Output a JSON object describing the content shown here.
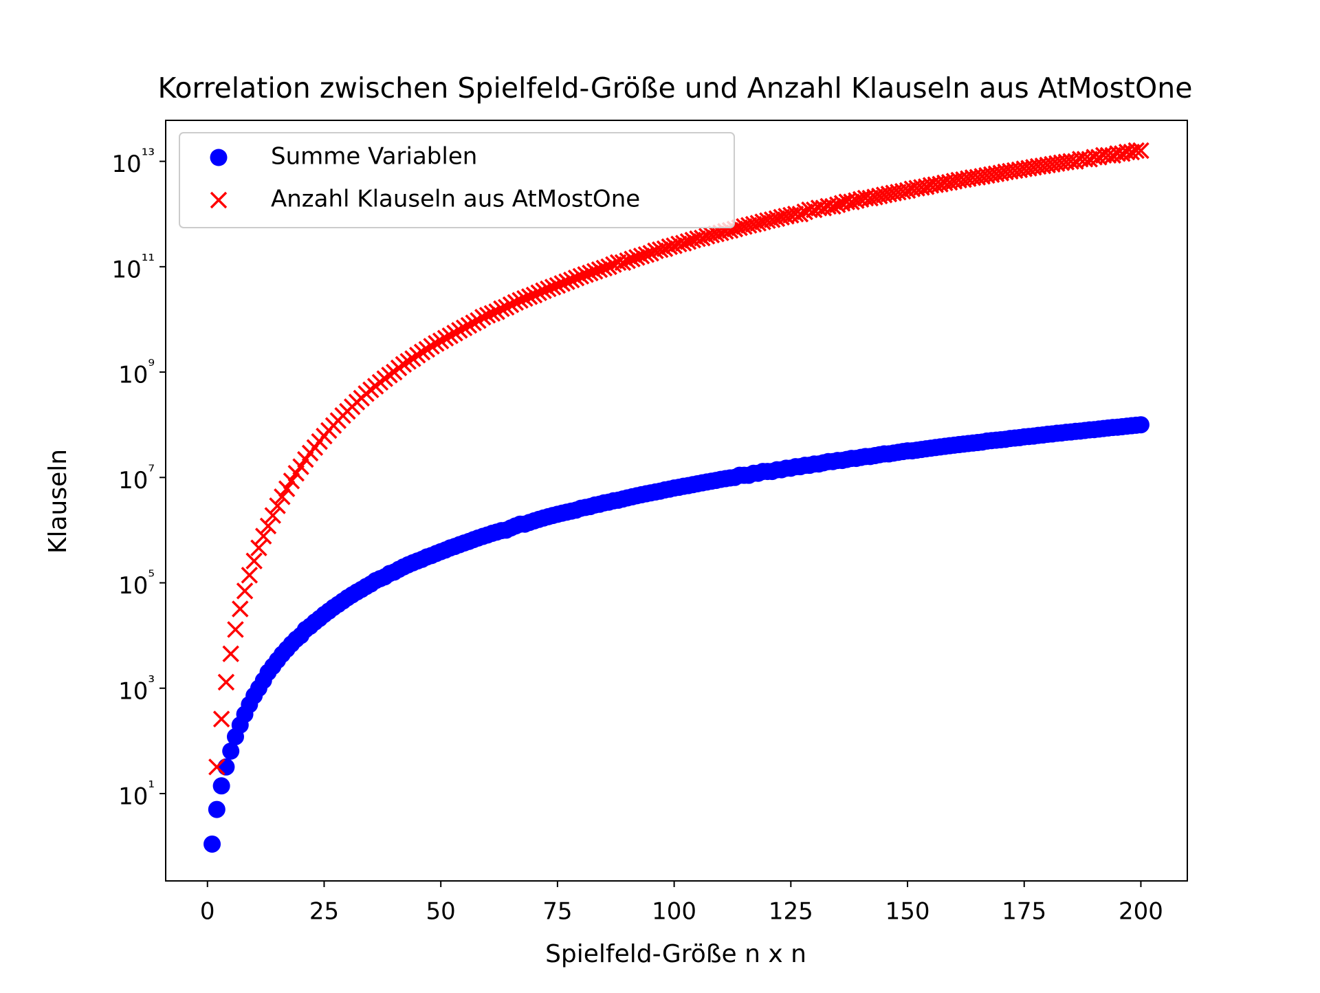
{
  "chart_data": {
    "type": "scatter",
    "title": "Korrelation zwischen Spielfeld-Größe und Anzahl Klauseln aus AtMostOne",
    "x_label": "Spielfeld-Größe n x n",
    "y_label": "Klauseln",
    "y_scale": "log",
    "legend": "upper left",
    "xlim": [
      -8.95,
      209.95
    ],
    "ylim": [
      0.22,
      60000000000000.0
    ],
    "xticks": [
      0,
      25,
      50,
      75,
      100,
      125,
      150,
      175,
      200
    ],
    "yticks": [
      {
        "value": 10,
        "label": "10¹"
      },
      {
        "value": 1000,
        "label": "10³"
      },
      {
        "value": 100000,
        "label": "10⁵"
      },
      {
        "value": 10000000,
        "label": "10⁷"
      },
      {
        "value": 1000000000,
        "label": "10⁹"
      },
      {
        "value": 100000000000,
        "label": "10¹¹"
      },
      {
        "value": 10000000000000,
        "label": "10¹³"
      }
    ],
    "x": [
      1,
      2,
      3,
      4,
      5,
      6,
      7,
      8,
      9,
      10,
      11,
      12,
      13,
      14,
      15,
      16,
      17,
      18,
      19,
      20,
      21,
      22,
      23,
      24,
      25,
      26,
      27,
      28,
      29,
      30,
      31,
      32,
      33,
      34,
      35,
      36,
      37,
      38,
      39,
      40,
      41,
      42,
      43,
      44,
      45,
      46,
      47,
      48,
      49,
      50,
      51,
      52,
      53,
      54,
      55,
      56,
      57,
      58,
      59,
      60,
      61,
      62,
      63,
      64,
      65,
      66,
      67,
      68,
      69,
      70,
      71,
      72,
      73,
      74,
      75,
      76,
      77,
      78,
      79,
      80,
      81,
      82,
      83,
      84,
      85,
      86,
      87,
      88,
      89,
      90,
      91,
      92,
      93,
      94,
      95,
      96,
      97,
      98,
      99,
      100,
      101,
      102,
      103,
      104,
      105,
      106,
      107,
      108,
      109,
      110,
      111,
      112,
      113,
      114,
      115,
      116,
      117,
      118,
      119,
      120,
      121,
      122,
      123,
      124,
      125,
      126,
      127,
      128,
      129,
      130,
      131,
      132,
      133,
      134,
      135,
      136,
      137,
      138,
      139,
      140,
      141,
      142,
      143,
      144,
      145,
      146,
      147,
      148,
      149,
      150,
      151,
      152,
      153,
      154,
      155,
      156,
      157,
      158,
      159,
      160,
      161,
      162,
      163,
      164,
      165,
      166,
      167,
      168,
      169,
      170,
      171,
      172,
      173,
      174,
      175,
      176,
      177,
      178,
      179,
      180,
      181,
      182,
      183,
      184,
      185,
      186,
      187,
      188,
      189,
      190,
      191,
      192,
      193,
      194,
      195,
      196,
      197,
      198,
      199,
      200
    ],
    "series": [
      {
        "name": "Summe Variablen",
        "color": "#0000ff",
        "marker": "o",
        "values": [
          1.1,
          5,
          14,
          32,
          64,
          120,
          200,
          320,
          490,
          720,
          1000,
          1400,
          2000,
          2600,
          3400,
          4400,
          5500,
          6900,
          8500,
          10000.0,
          13000.0,
          15000.0,
          18000.0,
          21000.0,
          25000.0,
          29000.0,
          34000.0,
          39000.0,
          45000.0,
          52000.0,
          59000.0,
          67000.0,
          75000.0,
          85000.0,
          95000.0,
          110000.0,
          120000.0,
          130000.0,
          150000.0,
          160000.0,
          180000.0,
          200000.0,
          220000.0,
          240000.0,
          260000.0,
          280000.0,
          310000.0,
          330000.0,
          360000.0,
          390000.0,
          420000.0,
          460000.0,
          490000.0,
          530000.0,
          570000.0,
          610000.0,
          660000.0,
          710000.0,
          760000.0,
          810000.0,
          870000.0,
          920000.0,
          980000.0,
          1000000.0,
          1100000.0,
          1200000.0,
          1300000.0,
          1300000.0,
          1400000.0,
          1500000.0,
          1600000.0,
          1700000.0,
          1800000.0,
          1900000.0,
          2000000.0,
          2100000.0,
          2200000.0,
          2300000.0,
          2400000.0,
          2600000.0,
          2700000.0,
          2800000.0,
          3000000.0,
          3100000.0,
          3300000.0,
          3400000.0,
          3600000.0,
          3700000.0,
          3900000.0,
          4100000.0,
          4300000.0,
          4500000.0,
          4700000.0,
          4900000.0,
          5100000.0,
          5300000.0,
          5500000.0,
          5800000.0,
          6000000.0,
          6300000.0,
          6500000.0,
          6800000.0,
          7000000.0,
          7300000.0,
          7600000.0,
          7900000.0,
          8200000.0,
          8500000.0,
          8800000.0,
          9200000.0,
          9500000.0,
          9800000.0,
          10000000.0,
          11000000.0,
          11000000.0,
          11000000.0,
          12000000.0,
          12000000.0,
          13000000.0,
          13000000.0,
          13000000.0,
          14000000.0,
          14000000.0,
          15000000.0,
          15000000.0,
          16000000.0,
          16000000.0,
          17000000.0,
          17000000.0,
          18000000.0,
          18000000.0,
          19000000.0,
          20000000.0,
          20000000.0,
          21000000.0,
          21000000.0,
          22000000.0,
          23000000.0,
          23000000.0,
          24000000.0,
          25000000.0,
          25000000.0,
          26000000.0,
          27000000.0,
          28000000.0,
          28000000.0,
          29000000.0,
          30000000.0,
          31000000.0,
          32000000.0,
          32000000.0,
          33000000.0,
          34000000.0,
          35000000.0,
          36000000.0,
          37000000.0,
          38000000.0,
          39000000.0,
          40000000.0,
          41000000.0,
          42000000.0,
          43000000.0,
          44000000.0,
          45000000.0,
          46000000.0,
          47000000.0,
          49000000.0,
          50000000.0,
          51000000.0,
          52000000.0,
          53000000.0,
          55000000.0,
          56000000.0,
          57000000.0,
          59000000.0,
          60000000.0,
          61000000.0,
          63000000.0,
          64000000.0,
          66000000.0,
          67000000.0,
          69000000.0,
          70000000.0,
          72000000.0,
          73000000.0,
          75000000.0,
          76000000.0,
          78000000.0,
          80000000.0,
          81000000.0,
          83000000.0,
          85000000.0,
          87000000.0,
          89000000.0,
          90000000.0,
          92000000.0,
          94000000.0,
          96000000.0,
          98000000.0,
          100000000.0
        ]
      },
      {
        "name": "Anzahl Klauseln aus AtMostOne",
        "color": "#ff0000",
        "marker": "x",
        "values": [
          null,
          32,
          260,
          1300,
          4500,
          13000.0,
          32000.0,
          70000.0,
          140000.0,
          260000.0,
          460000.0,
          770000.0,
          1200000.0,
          1900000.0,
          2900000.0,
          4300000.0,
          6100000.0,
          8600000.0,
          12000000.0,
          16000000.0,
          22000000.0,
          29000000.0,
          37000000.0,
          48000000.0,
          61000000.0,
          78000000.0,
          97000000.0,
          120000000.0,
          150000000.0,
          180000000.0,
          220000000.0,
          270000000.0,
          320000000.0,
          390000000.0,
          460000000.0,
          540000000.0,
          640000000.0,
          750000000.0,
          880000000.0,
          1000000000.0,
          1200000000.0,
          1400000000.0,
          1600000000.0,
          1800000000.0,
          2100000000.0,
          2400000000.0,
          2700000000.0,
          3100000000.0,
          3500000000.0,
          3900000000.0,
          4400000000.0,
          4900000000.0,
          5500000000.0,
          6200000000.0,
          6900000000.0,
          7700000000.0,
          8600000000.0,
          9500000000.0,
          11000000000.0,
          12000000000.0,
          13000000000.0,
          14000000000.0,
          16000000000.0,
          17000000000.0,
          19000000000.0,
          21000000000.0,
          23000000000.0,
          25000000000.0,
          27000000000.0,
          29000000000.0,
          32000000000.0,
          35000000000.0,
          38000000000.0,
          41000000000.0,
          44000000000.0,
          48000000000.0,
          52000000000.0,
          56000000000.0,
          61000000000.0,
          66000000000.0,
          71000000000.0,
          76000000000.0,
          82000000000.0,
          88000000000.0,
          94000000000.0,
          100000000000.0,
          110000000000.0,
          120000000000.0,
          120000000000.0,
          130000000000.0,
          140000000000.0,
          150000000000.0,
          160000000000.0,
          170000000000.0,
          180000000000.0,
          200000000000.0,
          210000000000.0,
          220000000000.0,
          240000000000.0,
          250000000000.0,
          270000000000.0,
          280000000000.0,
          300000000000.0,
          320000000000.0,
          340000000000.0,
          350000000000.0,
          380000000000.0,
          400000000000.0,
          420000000000.0,
          440000000000.0,
          470000000000.0,
          490000000000.0,
          520000000000.0,
          550000000000.0,
          580000000000.0,
          610000000000.0,
          640000000000.0,
          670000000000.0,
          710000000000.0,
          750000000000.0,
          780000000000.0,
          820000000000.0,
          870000000000.0,
          910000000000.0,
          950000000000.0,
          1000000000000.0,
          1000000000000.0,
          1100000000000.0,
          1200000000000.0,
          1200000000000.0,
          1300000000000.0,
          1300000000000.0,
          1400000000000.0,
          1400000000000.0,
          1500000000000.0,
          1600000000000.0,
          1700000000000.0,
          1700000000000.0,
          1800000000000.0,
          1900000000000.0,
          2000000000000.0,
          2000000000000.0,
          2100000000000.0,
          2200000000000.0,
          2300000000000.0,
          2400000000000.0,
          2500000000000.0,
          2600000000000.0,
          2700000000000.0,
          2800000000000.0,
          3000000000000.0,
          3100000000000.0,
          3200000000000.0,
          3300000000000.0,
          3500000000000.0,
          3600000000000.0,
          3700000000000.0,
          3900000000000.0,
          4000000000000.0,
          4200000000000.0,
          4400000000000.0,
          4500000000000.0,
          4700000000000.0,
          4900000000000.0,
          5000000000000.0,
          5200000000000.0,
          5400000000000.0,
          5600000000000.0,
          5800000000000.0,
          6000000000000.0,
          6300000000000.0,
          6500000000000.0,
          6700000000000.0,
          6900000000000.0,
          7200000000000.0,
          7400000000000.0,
          7700000000000.0,
          8000000000000.0,
          8200000000000.0,
          8500000000000.0,
          8800000000000.0,
          9100000000000.0,
          9400000000000.0,
          9700000000000.0,
          10000000000000.0,
          10000000000000.0,
          11000000000000.0,
          11000000000000.0,
          11000000000000.0,
          12000000000000.0,
          12000000000000.0,
          13000000000000.0,
          13000000000000.0,
          13000000000000.0,
          14000000000000.0,
          14000000000000.0,
          15000000000000.0,
          15000000000000.0,
          16000000000000.0,
          16000000000000.0
        ]
      }
    ]
  }
}
